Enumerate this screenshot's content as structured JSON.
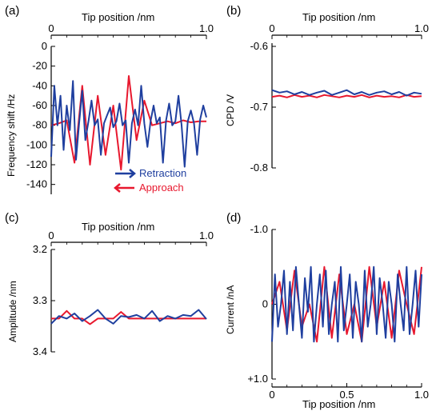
{
  "figure": {
    "panels": [
      {
        "label": "(a)",
        "top_axis": {
          "title": "Tip position /nm",
          "ticks": [
            "0",
            "1.0"
          ]
        },
        "y_axis": {
          "title": "Frequency shift /Hz",
          "ticks": [
            "-140",
            "-120",
            "-100",
            "-80",
            "-60",
            "-40",
            "-20",
            "0"
          ]
        },
        "legend": [
          {
            "label": "Retraction",
            "arrow": "right",
            "color": "#1f3f9f"
          },
          {
            "label": "Approach",
            "arrow": "left",
            "color": "#e8182e"
          }
        ]
      },
      {
        "label": "(b)",
        "top_axis": {
          "title": "Tip position /nm",
          "ticks": [
            "0",
            "1.0"
          ]
        },
        "y_axis": {
          "title": "CPD /V",
          "ticks": [
            "-0.6",
            "-0.7",
            "-0.8"
          ]
        }
      },
      {
        "label": "(c)",
        "top_axis": {
          "title": "Tip position /nm",
          "ticks": [
            "0",
            "1.0"
          ]
        },
        "y_axis": {
          "title": "Amplitude /nm",
          "ticks": [
            "3.2",
            "3.3",
            "3.4"
          ]
        }
      },
      {
        "label": "(d)",
        "bottom_axis": {
          "title": "Tip position /nm",
          "ticks": [
            "0",
            "0.5",
            "1.0"
          ]
        },
        "y_axis": {
          "title": "Current /nA",
          "ticks": [
            "+1.0",
            "0",
            "-1.0"
          ]
        }
      }
    ]
  },
  "chart_data": [
    {
      "type": "line",
      "panel": "(a)",
      "xlabel": "Tip position /nm",
      "ylabel": "Frequency shift /Hz",
      "xlim": [
        0,
        1.0
      ],
      "ylim": [
        0,
        -150
      ],
      "y_inverted": true,
      "series": [
        {
          "name": "Retraction",
          "color": "#1f3f9f",
          "x": [
            0,
            0.02,
            0.04,
            0.06,
            0.08,
            0.1,
            0.12,
            0.14,
            0.16,
            0.18,
            0.2,
            0.22,
            0.24,
            0.26,
            0.28,
            0.3,
            0.32,
            0.34,
            0.36,
            0.38,
            0.4,
            0.42,
            0.44,
            0.46,
            0.48,
            0.5,
            0.52,
            0.54,
            0.56,
            0.58,
            0.6,
            0.62,
            0.64,
            0.66,
            0.68,
            0.7,
            0.72,
            0.74,
            0.76,
            0.78,
            0.8,
            0.82,
            0.84,
            0.86,
            0.88,
            0.9,
            0.92,
            0.94,
            0.96,
            0.98,
            1.0
          ],
          "y": [
            -112,
            -40,
            -80,
            -50,
            -105,
            -60,
            -85,
            -35,
            -115,
            -78,
            -45,
            -95,
            -76,
            -55,
            -80,
            -74,
            -110,
            -78,
            -70,
            -62,
            -82,
            -76,
            -58,
            -80,
            -75,
            -118,
            -78,
            -64,
            -80,
            -40,
            -78,
            -102,
            -76,
            -60,
            -78,
            -72,
            -118,
            -75,
            -58,
            -80,
            -76,
            -50,
            -80,
            -122,
            -76,
            -65,
            -78,
            -110,
            -74,
            -60,
            -72
          ]
        },
        {
          "name": "Approach",
          "color": "#e8182e",
          "x": [
            0,
            0.05,
            0.1,
            0.15,
            0.2,
            0.25,
            0.3,
            0.35,
            0.4,
            0.45,
            0.5,
            0.55,
            0.6,
            0.65,
            0.7,
            0.75,
            0.8,
            0.85,
            0.9,
            0.95,
            1.0
          ],
          "y": [
            -80,
            -78,
            -75,
            -118,
            -40,
            -120,
            -50,
            -110,
            -60,
            -125,
            -30,
            -95,
            -55,
            -80,
            -78,
            -76,
            -78,
            -75,
            -77,
            -76,
            -76
          ]
        }
      ]
    },
    {
      "type": "line",
      "panel": "(b)",
      "xlabel": "Tip position /nm",
      "ylabel": "CPD /V",
      "xlim": [
        0,
        1.0
      ],
      "ylim": [
        -0.6,
        -0.8
      ],
      "y_inverted": true,
      "series": [
        {
          "name": "Retraction",
          "color": "#1f3f9f",
          "x": [
            0,
            0.05,
            0.1,
            0.15,
            0.2,
            0.25,
            0.3,
            0.35,
            0.4,
            0.45,
            0.5,
            0.55,
            0.6,
            0.65,
            0.7,
            0.75,
            0.8,
            0.85,
            0.9,
            0.95,
            1.0
          ],
          "y": [
            -0.672,
            -0.676,
            -0.674,
            -0.679,
            -0.675,
            -0.68,
            -0.676,
            -0.673,
            -0.68,
            -0.676,
            -0.672,
            -0.679,
            -0.675,
            -0.68,
            -0.676,
            -0.674,
            -0.679,
            -0.675,
            -0.681,
            -0.676,
            -0.678
          ]
        },
        {
          "name": "Approach",
          "color": "#e8182e",
          "x": [
            0,
            0.05,
            0.1,
            0.15,
            0.2,
            0.25,
            0.3,
            0.35,
            0.4,
            0.45,
            0.5,
            0.55,
            0.6,
            0.65,
            0.7,
            0.75,
            0.8,
            0.85,
            0.9,
            0.95,
            1.0
          ],
          "y": [
            -0.683,
            -0.681,
            -0.684,
            -0.68,
            -0.683,
            -0.681,
            -0.684,
            -0.68,
            -0.682,
            -0.684,
            -0.681,
            -0.683,
            -0.68,
            -0.684,
            -0.681,
            -0.683,
            -0.682,
            -0.684,
            -0.68,
            -0.683,
            -0.682
          ]
        }
      ]
    },
    {
      "type": "line",
      "panel": "(c)",
      "xlabel": "Tip position /nm",
      "ylabel": "Amplitude /nm",
      "xlim": [
        0,
        1.0
      ],
      "ylim": [
        3.2,
        3.4
      ],
      "series": [
        {
          "name": "Retraction",
          "color": "#1f3f9f",
          "x": [
            0,
            0.05,
            0.1,
            0.15,
            0.2,
            0.25,
            0.3,
            0.35,
            0.4,
            0.45,
            0.5,
            0.55,
            0.6,
            0.65,
            0.7,
            0.75,
            0.8,
            0.85,
            0.9,
            0.95,
            1.0
          ],
          "y": [
            3.345,
            3.33,
            3.335,
            3.325,
            3.34,
            3.33,
            3.318,
            3.335,
            3.345,
            3.33,
            3.332,
            3.328,
            3.335,
            3.32,
            3.34,
            3.33,
            3.335,
            3.328,
            3.33,
            3.318,
            3.336
          ]
        },
        {
          "name": "Approach",
          "color": "#e8182e",
          "x": [
            0,
            0.05,
            0.1,
            0.15,
            0.2,
            0.25,
            0.3,
            0.35,
            0.4,
            0.45,
            0.5,
            0.55,
            0.6,
            0.65,
            0.7,
            0.75,
            0.8,
            0.85,
            0.9,
            0.95,
            1.0
          ],
          "y": [
            3.335,
            3.335,
            3.32,
            3.335,
            3.335,
            3.346,
            3.335,
            3.335,
            3.335,
            3.322,
            3.335,
            3.335,
            3.335,
            3.335,
            3.335,
            3.335,
            3.335,
            3.335,
            3.335,
            3.335,
            3.335
          ]
        }
      ]
    },
    {
      "type": "line",
      "panel": "(d)",
      "xlabel": "Tip position /nm",
      "ylabel": "Current /nA",
      "xlim": [
        0,
        1.0
      ],
      "ylim": [
        -1.0,
        1.0
      ],
      "series": [
        {
          "name": "Retraction",
          "color": "#1f3f9f",
          "x": [
            0,
            0.02,
            0.04,
            0.06,
            0.08,
            0.1,
            0.12,
            0.14,
            0.16,
            0.18,
            0.2,
            0.22,
            0.24,
            0.26,
            0.28,
            0.3,
            0.32,
            0.34,
            0.36,
            0.38,
            0.4,
            0.42,
            0.44,
            0.46,
            0.48,
            0.5,
            0.52,
            0.54,
            0.56,
            0.58,
            0.6,
            0.62,
            0.64,
            0.66,
            0.68,
            0.7,
            0.72,
            0.74,
            0.76,
            0.78,
            0.8,
            0.82,
            0.84,
            0.86,
            0.88,
            0.9,
            0.92,
            0.94,
            0.96,
            0.98,
            1.0
          ],
          "y": [
            0.5,
            -0.4,
            0.3,
            0.0,
            -0.45,
            0.4,
            -0.3,
            0.35,
            -0.5,
            0.0,
            0.45,
            -0.35,
            0.1,
            -0.5,
            0.5,
            0.0,
            -0.4,
            0.3,
            -0.45,
            0.4,
            0.0,
            -0.3,
            0.5,
            -0.5,
            0.35,
            0.0,
            -0.4,
            0.45,
            -0.3,
            0.0,
            0.5,
            -0.45,
            0.3,
            0.0,
            -0.5,
            0.4,
            -0.35,
            0.0,
            0.45,
            -0.3,
            0.0,
            0.5,
            -0.4,
            0.0,
            0.35,
            -0.5,
            0.4,
            0.0,
            -0.45,
            0.3,
            -0.4
          ]
        },
        {
          "name": "Approach",
          "color": "#e8182e",
          "x": [
            0,
            0.05,
            0.1,
            0.15,
            0.2,
            0.25,
            0.3,
            0.35,
            0.4,
            0.45,
            0.5,
            0.55,
            0.6,
            0.65,
            0.7,
            0.75,
            0.8,
            0.85,
            0.9,
            0.95,
            1.0
          ],
          "y": [
            0.0,
            -0.3,
            0.35,
            -0.45,
            0.3,
            0.0,
            0.5,
            -0.5,
            0.45,
            -0.4,
            0.4,
            0.0,
            0.5,
            -0.5,
            0.3,
            -0.3,
            0.45,
            -0.45,
            0.0,
            0.4,
            -0.5
          ]
        }
      ]
    }
  ]
}
